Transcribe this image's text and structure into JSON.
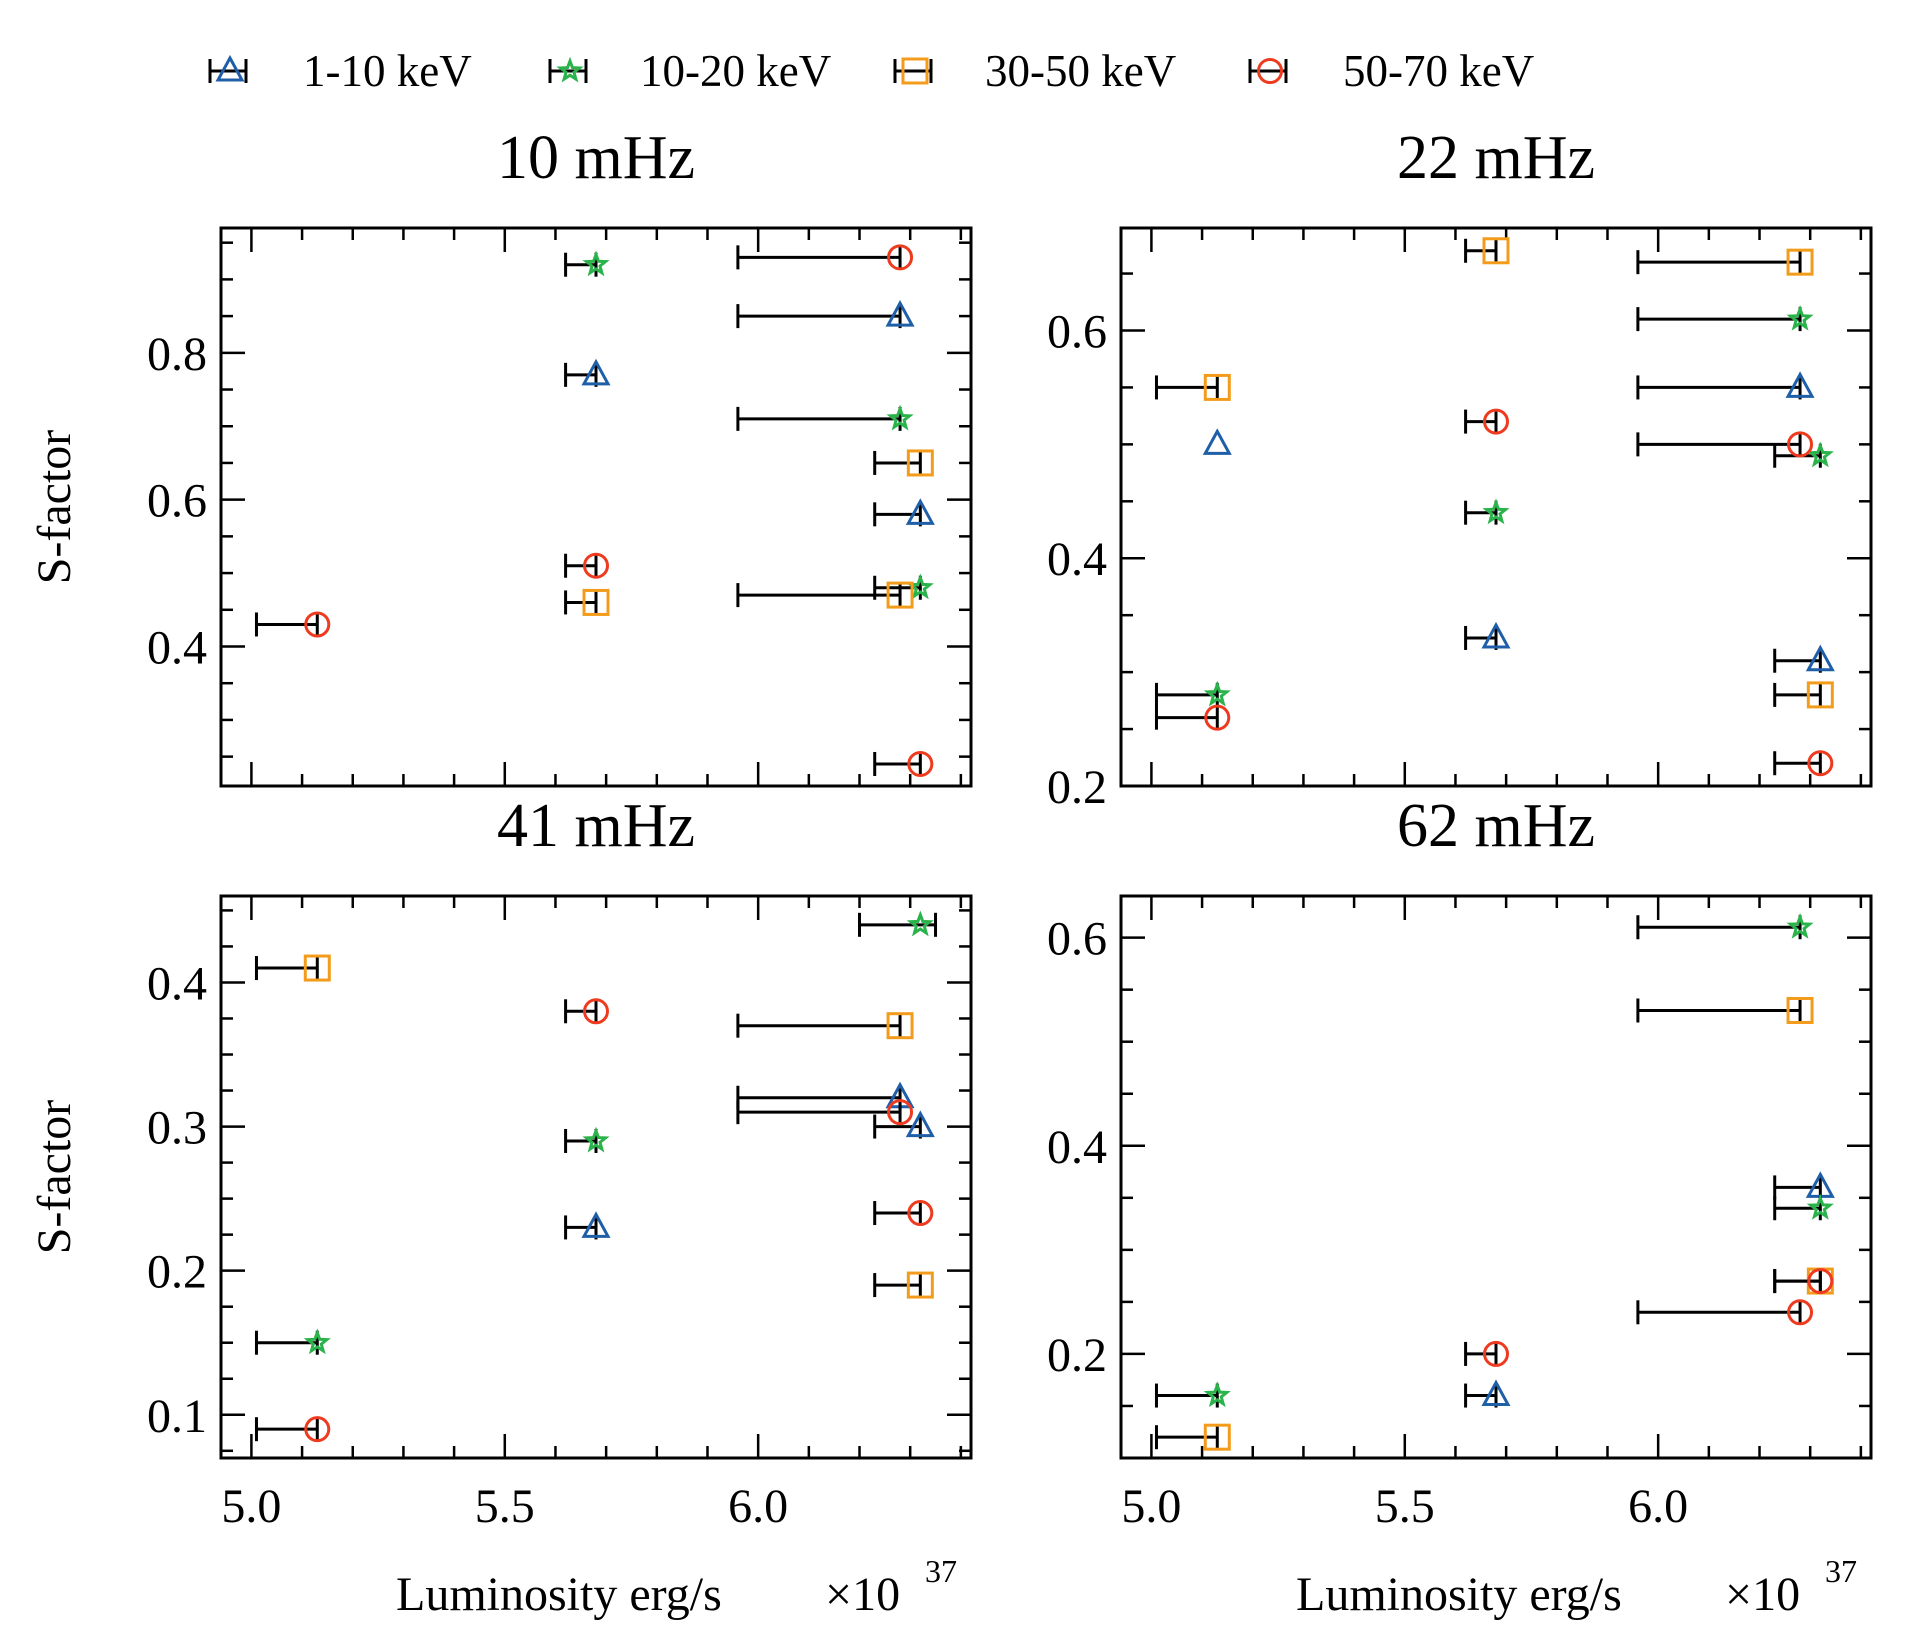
{
  "chart_data": {
    "type": "scatter",
    "legend": {
      "placement": "top",
      "entries": [
        {
          "name": "1-10 keV",
          "marker": "triangle",
          "color": "#1f5fa8"
        },
        {
          "name": "10-20 keV",
          "marker": "star",
          "color": "#2ab34a"
        },
        {
          "name": "30-50 keV",
          "marker": "square",
          "color": "#f39c1c"
        },
        {
          "name": "50-70 keV",
          "marker": "circle",
          "color": "#ee3b1f"
        }
      ]
    },
    "panels": [
      {
        "title": "10 mHz",
        "ylabel": "S-factor",
        "xlabel": "",
        "xlim": [
          4.94,
          6.42
        ],
        "ylim": [
          0.21,
          0.97
        ],
        "xticks": [
          5.0,
          5.5,
          6.0
        ],
        "xtick_labels": [],
        "yticks": [
          0.4,
          0.6,
          0.8
        ],
        "ytick_labels": [
          "0.4",
          "0.6",
          "0.8"
        ],
        "series": [
          {
            "name": "1-10 keV",
            "points": [
              {
                "x": 5.68,
                "y": 0.77,
                "xerr_lo": 5.62,
                "xerr_hi": 5.68
              },
              {
                "x": 6.28,
                "y": 0.85,
                "xerr_lo": 5.96,
                "xerr_hi": 6.28
              },
              {
                "x": 6.32,
                "y": 0.58,
                "xerr_lo": 6.23,
                "xerr_hi": 6.32
              }
            ]
          },
          {
            "name": "10-20 keV",
            "points": [
              {
                "x": 5.68,
                "y": 0.92,
                "xerr_lo": 5.62,
                "xerr_hi": 5.68
              },
              {
                "x": 6.28,
                "y": 0.71,
                "xerr_lo": 5.96,
                "xerr_hi": 6.28
              },
              {
                "x": 6.32,
                "y": 0.48,
                "xerr_lo": 6.23,
                "xerr_hi": 6.32
              }
            ]
          },
          {
            "name": "30-50 keV",
            "points": [
              {
                "x": 5.68,
                "y": 0.46,
                "xerr_lo": 5.62,
                "xerr_hi": 5.68
              },
              {
                "x": 6.28,
                "y": 0.47,
                "xerr_lo": 5.96,
                "xerr_hi": 6.28
              },
              {
                "x": 6.32,
                "y": 0.65,
                "xerr_lo": 6.23,
                "xerr_hi": 6.32
              }
            ]
          },
          {
            "name": "50-70 keV",
            "points": [
              {
                "x": 5.13,
                "y": 0.43,
                "xerr_lo": 5.01,
                "xerr_hi": 5.13
              },
              {
                "x": 5.68,
                "y": 0.51,
                "xerr_lo": 5.62,
                "xerr_hi": 5.68
              },
              {
                "x": 6.28,
                "y": 0.93,
                "xerr_lo": 5.96,
                "xerr_hi": 6.28
              },
              {
                "x": 6.32,
                "y": 0.24,
                "xerr_lo": 6.23,
                "xerr_hi": 6.32
              }
            ]
          }
        ]
      },
      {
        "title": "22 mHz",
        "ylabel": "",
        "xlabel": "",
        "xlim": [
          4.94,
          6.42
        ],
        "ylim": [
          0.2,
          0.69
        ],
        "xticks": [
          5.0,
          5.5,
          6.0
        ],
        "xtick_labels": [],
        "yticks": [
          0.2,
          0.4,
          0.6
        ],
        "ytick_labels": [
          "0.2",
          "0.4",
          "0.6"
        ],
        "series": [
          {
            "name": "1-10 keV",
            "points": [
              {
                "x": 5.13,
                "y": 0.5,
                "xerr_lo": 5.13,
                "xerr_hi": 5.13
              },
              {
                "x": 5.68,
                "y": 0.33,
                "xerr_lo": 5.62,
                "xerr_hi": 5.68
              },
              {
                "x": 6.28,
                "y": 0.55,
                "xerr_lo": 5.96,
                "xerr_hi": 6.28
              },
              {
                "x": 6.32,
                "y": 0.31,
                "xerr_lo": 6.23,
                "xerr_hi": 6.32
              }
            ]
          },
          {
            "name": "10-20 keV",
            "points": [
              {
                "x": 5.13,
                "y": 0.28,
                "xerr_lo": 5.01,
                "xerr_hi": 5.13
              },
              {
                "x": 5.68,
                "y": 0.44,
                "xerr_lo": 5.62,
                "xerr_hi": 5.68
              },
              {
                "x": 6.28,
                "y": 0.61,
                "xerr_lo": 5.96,
                "xerr_hi": 6.28
              },
              {
                "x": 6.32,
                "y": 0.49,
                "xerr_lo": 6.23,
                "xerr_hi": 6.32
              }
            ]
          },
          {
            "name": "30-50 keV",
            "points": [
              {
                "x": 5.13,
                "y": 0.55,
                "xerr_lo": 5.01,
                "xerr_hi": 5.13
              },
              {
                "x": 5.68,
                "y": 0.67,
                "xerr_lo": 5.62,
                "xerr_hi": 5.68
              },
              {
                "x": 6.28,
                "y": 0.66,
                "xerr_lo": 5.96,
                "xerr_hi": 6.28
              },
              {
                "x": 6.32,
                "y": 0.28,
                "xerr_lo": 6.23,
                "xerr_hi": 6.32
              }
            ]
          },
          {
            "name": "50-70 keV",
            "points": [
              {
                "x": 5.13,
                "y": 0.26,
                "xerr_lo": 5.01,
                "xerr_hi": 5.13
              },
              {
                "x": 5.68,
                "y": 0.52,
                "xerr_lo": 5.62,
                "xerr_hi": 5.68
              },
              {
                "x": 6.28,
                "y": 0.5,
                "xerr_lo": 5.96,
                "xerr_hi": 6.28
              },
              {
                "x": 6.32,
                "y": 0.22,
                "xerr_lo": 6.23,
                "xerr_hi": 6.32
              }
            ]
          }
        ]
      },
      {
        "title": "41 mHz",
        "ylabel": "S-factor",
        "xlabel": "Luminosity erg/s",
        "x_scale_label": "×10",
        "x_scale_exponent": "37",
        "xlim": [
          4.94,
          6.42
        ],
        "ylim": [
          0.07,
          0.46
        ],
        "xticks": [
          5.0,
          5.5,
          6.0
        ],
        "xtick_labels": [
          "5.0",
          "5.5",
          "6.0"
        ],
        "yticks": [
          0.1,
          0.2,
          0.3,
          0.4
        ],
        "ytick_labels": [
          "0.1",
          "0.2",
          "0.3",
          "0.4"
        ],
        "series": [
          {
            "name": "1-10 keV",
            "points": [
              {
                "x": 5.68,
                "y": 0.23,
                "xerr_lo": 5.62,
                "xerr_hi": 5.68
              },
              {
                "x": 6.28,
                "y": 0.32,
                "xerr_lo": 5.96,
                "xerr_hi": 6.28
              },
              {
                "x": 6.32,
                "y": 0.3,
                "xerr_lo": 6.23,
                "xerr_hi": 6.32
              }
            ]
          },
          {
            "name": "10-20 keV",
            "points": [
              {
                "x": 5.13,
                "y": 0.15,
                "xerr_lo": 5.01,
                "xerr_hi": 5.13
              },
              {
                "x": 5.68,
                "y": 0.29,
                "xerr_lo": 5.62,
                "xerr_hi": 5.68
              },
              {
                "x": 6.32,
                "y": 0.44,
                "xerr_lo": 6.2,
                "xerr_hi": 6.35
              }
            ]
          },
          {
            "name": "30-50 keV",
            "points": [
              {
                "x": 5.13,
                "y": 0.41,
                "xerr_lo": 5.01,
                "xerr_hi": 5.13
              },
              {
                "x": 6.28,
                "y": 0.37,
                "xerr_lo": 5.96,
                "xerr_hi": 6.28
              },
              {
                "x": 6.32,
                "y": 0.19,
                "xerr_lo": 6.23,
                "xerr_hi": 6.32
              }
            ]
          },
          {
            "name": "50-70 keV",
            "points": [
              {
                "x": 5.13,
                "y": 0.09,
                "xerr_lo": 5.01,
                "xerr_hi": 5.13
              },
              {
                "x": 5.68,
                "y": 0.38,
                "xerr_lo": 5.62,
                "xerr_hi": 5.68
              },
              {
                "x": 6.28,
                "y": 0.31,
                "xerr_lo": 5.96,
                "xerr_hi": 6.28
              },
              {
                "x": 6.32,
                "y": 0.24,
                "xerr_lo": 6.23,
                "xerr_hi": 6.32
              }
            ]
          }
        ]
      },
      {
        "title": "62 mHz",
        "ylabel": "",
        "xlabel": "Luminosity erg/s",
        "x_scale_label": "×10",
        "x_scale_exponent": "37",
        "xlim": [
          4.94,
          6.42
        ],
        "ylim": [
          0.1,
          0.64
        ],
        "xticks": [
          5.0,
          5.5,
          6.0
        ],
        "xtick_labels": [
          "5.0",
          "5.5",
          "6.0"
        ],
        "yticks": [
          0.2,
          0.4,
          0.6
        ],
        "ytick_labels": [
          "0.2",
          "0.4",
          "0.6"
        ],
        "series": [
          {
            "name": "1-10 keV",
            "points": [
              {
                "x": 5.68,
                "y": 0.16,
                "xerr_lo": 5.62,
                "xerr_hi": 5.68
              },
              {
                "x": 6.32,
                "y": 0.36,
                "xerr_lo": 6.23,
                "xerr_hi": 6.32
              }
            ]
          },
          {
            "name": "10-20 keV",
            "points": [
              {
                "x": 5.13,
                "y": 0.16,
                "xerr_lo": 5.01,
                "xerr_hi": 5.13
              },
              {
                "x": 6.28,
                "y": 0.61,
                "xerr_lo": 5.96,
                "xerr_hi": 6.28
              },
              {
                "x": 6.32,
                "y": 0.34,
                "xerr_lo": 6.23,
                "xerr_hi": 6.32
              }
            ]
          },
          {
            "name": "30-50 keV",
            "points": [
              {
                "x": 5.13,
                "y": 0.12,
                "xerr_lo": 5.01,
                "xerr_hi": 5.13
              },
              {
                "x": 6.28,
                "y": 0.53,
                "xerr_lo": 5.96,
                "xerr_hi": 6.28
              },
              {
                "x": 6.32,
                "y": 0.27,
                "xerr_lo": 6.23,
                "xerr_hi": 6.32
              }
            ]
          },
          {
            "name": "50-70 keV",
            "points": [
              {
                "x": 5.68,
                "y": 0.2,
                "xerr_lo": 5.62,
                "xerr_hi": 5.68
              },
              {
                "x": 6.28,
                "y": 0.24,
                "xerr_lo": 5.96,
                "xerr_hi": 6.28
              },
              {
                "x": 6.32,
                "y": 0.27,
                "xerr_lo": 6.23,
                "xerr_hi": 6.32
              }
            ]
          }
        ]
      }
    ]
  }
}
